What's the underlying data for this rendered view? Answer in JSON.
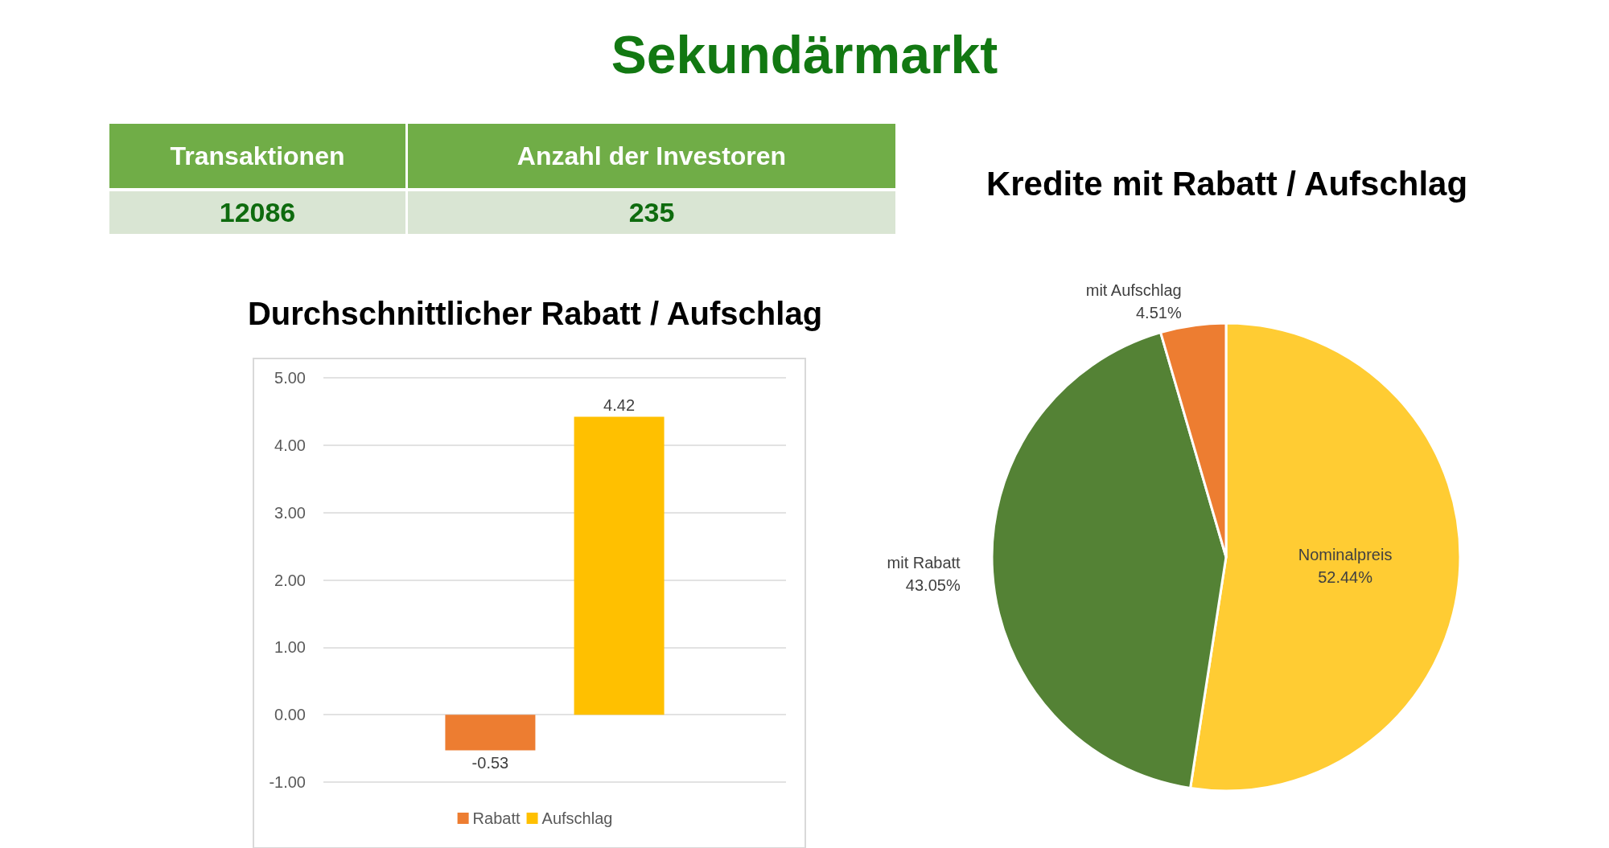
{
  "chart_data": [
    {
      "type": "other",
      "title": "Sekundärmarkt",
      "annotations": [
        "Transaktionen",
        "Anzahl der Investoren",
        "12086",
        "235"
      ]
    },
    {
      "type": "bar",
      "title": "Durchschnittlicher Rabatt / Aufschlag",
      "categories": [
        null
      ],
      "series": [
        {
          "name": "Rabatt",
          "color": "#ed7d31",
          "values": [
            -0.53
          ]
        },
        {
          "name": "Aufschlag",
          "color": "#ffc000",
          "values": [
            4.42
          ]
        }
      ],
      "ylim": [
        -1,
        5
      ],
      "yticks": [
        {
          "value": -1,
          "label": "-1.00"
        },
        {
          "value": 0,
          "label": "0.00"
        },
        {
          "value": 1,
          "label": "1.00"
        },
        {
          "value": 2,
          "label": "2.00"
        },
        {
          "value": 3,
          "label": "3.00"
        },
        {
          "value": 4,
          "label": "4.00"
        },
        {
          "value": 5,
          "label": "5.00"
        }
      ],
      "grid": "y",
      "legend": "bottom",
      "data_labels": true
    },
    {
      "type": "pie",
      "title": "Kredite mit Rabatt / Aufschlag",
      "categories": [
        "Nominalpreis",
        "mit Rabatt",
        "mit Aufschlag"
      ],
      "values": [
        52.44,
        43.05,
        4.51
      ],
      "colors": [
        "#ffcc33",
        "#548235",
        "#ed7d31"
      ],
      "value_labels": [
        "52.44%",
        "43.05%",
        "4.51%"
      ]
    }
  ]
}
